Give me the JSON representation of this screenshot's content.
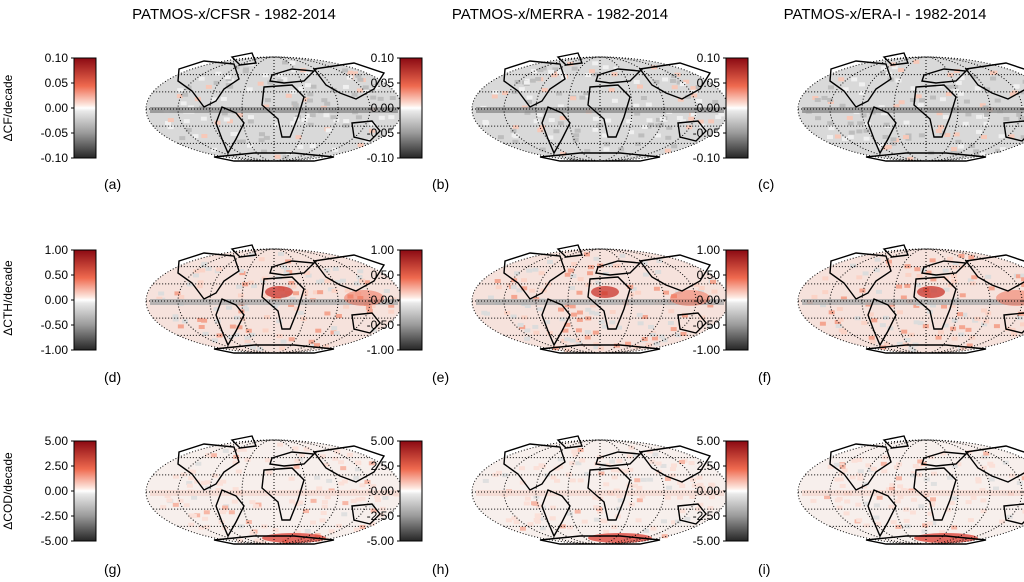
{
  "column_titles": [
    "PATMOS-x/CFSR - 1982-2014",
    "PATMOS-x/MERRA - 1982-2014",
    "PATMOS-x/ERA-I - 1982-2014"
  ],
  "row_labels": [
    "ΔCF/decade",
    "ΔCTH/decade",
    "ΔCOD/decade"
  ],
  "panel_labels": [
    "(a)",
    "(b)",
    "(c)",
    "(d)",
    "(e)",
    "(f)",
    "(g)",
    "(h)",
    "(i)"
  ],
  "colorscale": {
    "negative": "#3a3a3a",
    "zero": "#ffffff",
    "positive": "#a50f15"
  },
  "chart_data": {
    "type": "heatmap",
    "projection": "Mollweide (global maps, coastlines, dotted graticule)",
    "rows": [
      {
        "variable": "ΔCF/decade",
        "range": [
          -0.1,
          0.1
        ],
        "ticks": [
          "0.10",
          "0.05",
          "0.00",
          "-0.05",
          "-0.10"
        ]
      },
      {
        "variable": "ΔCTH/decade",
        "range": [
          -1.0,
          1.0
        ],
        "ticks": [
          "1.00",
          "0.50",
          "0.00",
          "-0.50",
          "-1.00"
        ]
      },
      {
        "variable": "ΔCOD/decade",
        "range": [
          -5.0,
          5.0
        ],
        "ticks": [
          "5.00",
          "2.50",
          "0.00",
          "-2.50",
          "-5.00"
        ]
      }
    ],
    "columns": [
      "PATMOS-x/CFSR - 1982-2014",
      "PATMOS-x/MERRA - 1982-2014",
      "PATMOS-x/ERA-I - 1982-2014"
    ]
  }
}
